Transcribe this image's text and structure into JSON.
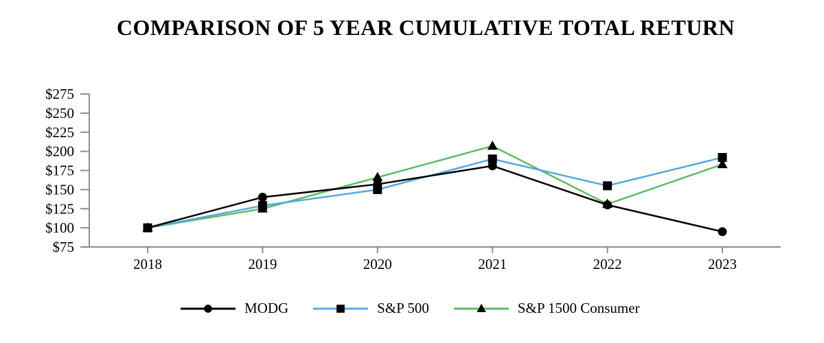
{
  "title": "COMPARISON OF 5 YEAR CUMULATIVE TOTAL RETURN",
  "chart_data": {
    "type": "line",
    "title": "COMPARISON OF 5 YEAR CUMULATIVE TOTAL RETURN",
    "x_categories": [
      "2018",
      "2019",
      "2020",
      "2021",
      "2022",
      "2023"
    ],
    "series": [
      {
        "name": "MODG",
        "color": "#000000",
        "marker": "circle",
        "values": [
          100,
          140,
          157,
          181,
          130,
          95
        ]
      },
      {
        "name": "S&P 500",
        "color": "#55a8e2",
        "marker": "square",
        "values": [
          100,
          129,
          150,
          190,
          155,
          192
        ]
      },
      {
        "name": "S&P 1500 Consumer",
        "color": "#5eba66",
        "marker": "triangle",
        "values": [
          100,
          125,
          166,
          207,
          131,
          183
        ]
      }
    ],
    "y_axis": {
      "prefix": "$",
      "min": 75,
      "max": 275,
      "step": 25,
      "tick_labels": [
        "$275",
        "$250",
        "$225",
        "$200",
        "$175",
        "$150",
        "$125",
        "$100",
        "$75"
      ]
    },
    "ylim": [
      75,
      275
    ],
    "grid": false,
    "legend_position": "bottom",
    "axis_color": "#8c8c8c"
  }
}
